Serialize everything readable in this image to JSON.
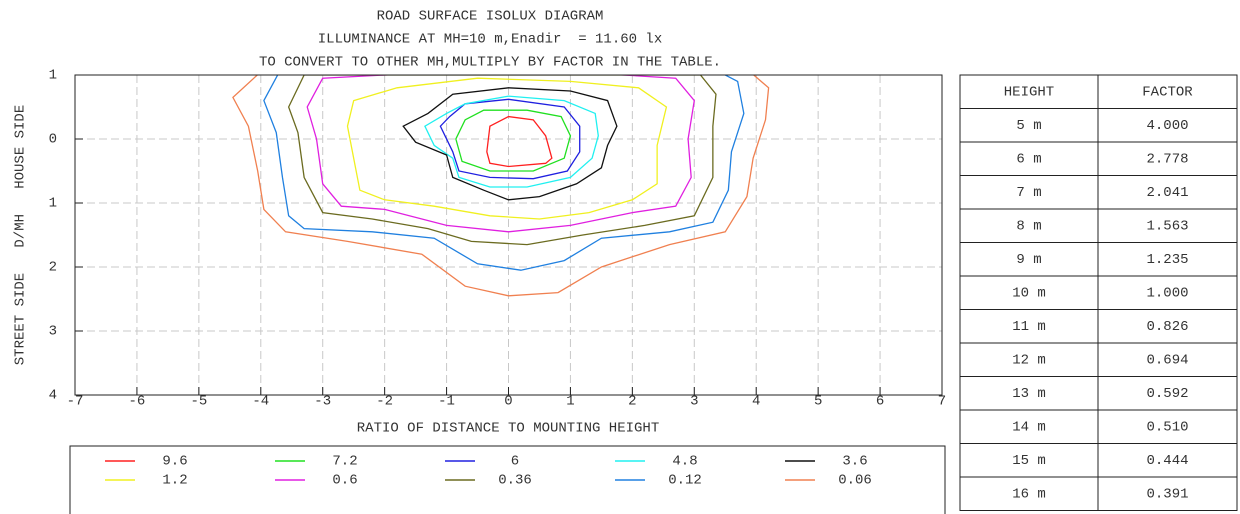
{
  "chart_data": {
    "type": "contour",
    "title": [
      "ROAD SURFACE ISOLUX DIAGRAM",
      "ILLUMINANCE AT MH=10 m,Enadir  = 11.60 lx",
      "TO CONVERT TO OTHER MH,MULTIPLY BY FACTOR IN THE TABLE."
    ],
    "xlabel": "RATIO OF DISTANCE TO MOUNTING HEIGHT",
    "ylabel": "STREET SIDE   D/MH   HOUSE SIDE",
    "xlim": [
      -7,
      7
    ],
    "xticks": [
      -7,
      -6,
      -5,
      -4,
      -3,
      -2,
      -1,
      0,
      1,
      2,
      3,
      4,
      5,
      6,
      7
    ],
    "ylim": [
      -1,
      4
    ],
    "y_inverted": true,
    "yticks": [
      {
        "value": -1,
        "label": "1"
      },
      0,
      1,
      2,
      3,
      4
    ],
    "grid": true,
    "series": [
      {
        "name": "9.6",
        "color": "#ff2020",
        "x": [
          -0.35,
          -0.3,
          0.0,
          0.4,
          0.6,
          0.7,
          0.6,
          0.0,
          -0.3
        ],
        "y": [
          0.2,
          -0.2,
          -0.35,
          -0.3,
          -0.05,
          0.3,
          0.38,
          0.43,
          0.38
        ]
      },
      {
        "name": "7.2",
        "color": "#20e020",
        "x": [
          -0.85,
          -0.75,
          -0.3,
          0.4,
          0.9,
          1.0,
          0.85,
          0.3,
          -0.4,
          -0.7
        ],
        "y": [
          0.0,
          0.35,
          0.5,
          0.5,
          0.3,
          -0.05,
          -0.35,
          -0.45,
          -0.45,
          -0.3
        ]
      },
      {
        "name": "6",
        "color": "#2020e0",
        "x": [
          -1.1,
          -0.9,
          -0.8,
          -0.3,
          0.4,
          0.95,
          1.15,
          1.15,
          0.9,
          0.0,
          -0.7,
          -0.95
        ],
        "y": [
          -0.2,
          0.2,
          0.5,
          0.6,
          0.62,
          0.5,
          0.2,
          -0.2,
          -0.5,
          -0.62,
          -0.55,
          -0.35
        ]
      },
      {
        "name": "4.8",
        "color": "#20f0f0",
        "x": [
          -1.35,
          -1.2,
          -0.9,
          -0.8,
          -0.3,
          0.3,
          1.0,
          1.35,
          1.45,
          1.4,
          0.9,
          0.0,
          -0.7,
          -1.0
        ],
        "y": [
          -0.2,
          0.1,
          0.3,
          0.6,
          0.75,
          0.75,
          0.6,
          0.3,
          -0.05,
          -0.4,
          -0.6,
          -0.67,
          -0.55,
          -0.4
        ]
      },
      {
        "name": "3.6",
        "color": "#111111",
        "x": [
          -1.7,
          -1.5,
          -1.0,
          -0.9,
          -0.4,
          0.0,
          0.5,
          1.1,
          1.5,
          1.6,
          1.75,
          1.6,
          1.0,
          0.0,
          -0.9,
          -1.3
        ],
        "y": [
          -0.2,
          0.05,
          0.25,
          0.6,
          0.8,
          0.95,
          0.9,
          0.7,
          0.45,
          0.1,
          -0.2,
          -0.6,
          -0.75,
          -0.8,
          -0.7,
          -0.4
        ]
      },
      {
        "name": "1.2",
        "color": "#f0f020",
        "x": [
          -2.5,
          -2.6,
          -2.5,
          -2.4,
          -2.0,
          -1.2,
          -0.3,
          0.5,
          1.3,
          2.0,
          2.4,
          2.4,
          2.55,
          2.1,
          1.0,
          -0.5,
          -1.8
        ],
        "y": [
          -0.6,
          -0.2,
          0.3,
          0.8,
          0.95,
          1.05,
          1.2,
          1.25,
          1.15,
          0.95,
          0.7,
          0.1,
          -0.5,
          -0.8,
          -0.9,
          -0.95,
          -0.8
        ]
      },
      {
        "name": "0.6",
        "color": "#e020e0",
        "x": [
          -3.0,
          -3.25,
          -3.1,
          -3.0,
          -2.7,
          -2.0,
          -1.0,
          0.0,
          1.0,
          2.0,
          2.7,
          2.95,
          2.9,
          3.0,
          2.7,
          1.0,
          -1.0
        ],
        "y": [
          -0.95,
          -0.5,
          0.0,
          0.7,
          1.05,
          1.1,
          1.35,
          1.45,
          1.35,
          1.15,
          1.05,
          0.6,
          0.0,
          -0.6,
          -0.95,
          -1.05,
          -1.05
        ]
      },
      {
        "name": "0.36",
        "color": "#6b6b20",
        "x": [
          -3.3,
          -3.55,
          -3.4,
          -3.3,
          -3.0,
          -2.2,
          -1.3,
          -0.6,
          0.3,
          1.2,
          2.2,
          3.0,
          3.3,
          3.3,
          3.35,
          3.1
        ],
        "y": [
          -1.0,
          -0.5,
          -0.1,
          0.6,
          1.15,
          1.25,
          1.4,
          1.6,
          1.65,
          1.5,
          1.35,
          1.2,
          0.6,
          -0.2,
          -0.7,
          -1.0
        ]
      },
      {
        "name": "0.12",
        "color": "#2080e0",
        "x": [
          -3.7,
          -3.95,
          -3.75,
          -3.65,
          -3.55,
          -3.3,
          -2.2,
          -1.2,
          -0.5,
          0.2,
          0.9,
          1.5,
          2.6,
          3.3,
          3.55,
          3.6,
          3.8,
          3.7,
          3.4
        ],
        "y": [
          -1.05,
          -0.6,
          -0.1,
          0.6,
          1.2,
          1.4,
          1.45,
          1.55,
          1.95,
          2.05,
          1.9,
          1.55,
          1.45,
          1.3,
          0.8,
          0.2,
          -0.4,
          -0.9,
          -1.05
        ]
      },
      {
        "name": "0.06",
        "color": "#f08050",
        "x": [
          -4.0,
          -4.45,
          -4.2,
          -4.05,
          -3.95,
          -3.6,
          -2.6,
          -1.4,
          -0.7,
          0.0,
          0.8,
          1.5,
          2.6,
          3.5,
          3.85,
          3.95,
          4.15,
          4.2,
          3.9
        ],
        "y": [
          -1.05,
          -0.65,
          -0.2,
          0.5,
          1.1,
          1.45,
          1.6,
          1.8,
          2.3,
          2.45,
          2.4,
          2.0,
          1.65,
          1.45,
          0.9,
          0.3,
          -0.3,
          -0.8,
          -1.05
        ]
      }
    ]
  },
  "table": {
    "header": [
      "HEIGHT",
      "FACTOR"
    ],
    "rows": [
      [
        "5 m",
        "4.000"
      ],
      [
        "6 m",
        "2.778"
      ],
      [
        "7 m",
        "2.041"
      ],
      [
        "8 m",
        "1.563"
      ],
      [
        "9 m",
        "1.235"
      ],
      [
        "10 m",
        "1.000"
      ],
      [
        "11 m",
        "0.826"
      ],
      [
        "12 m",
        "0.694"
      ],
      [
        "13 m",
        "0.592"
      ],
      [
        "14 m",
        "0.510"
      ],
      [
        "15 m",
        "0.444"
      ],
      [
        "16 m",
        "0.391"
      ]
    ]
  }
}
